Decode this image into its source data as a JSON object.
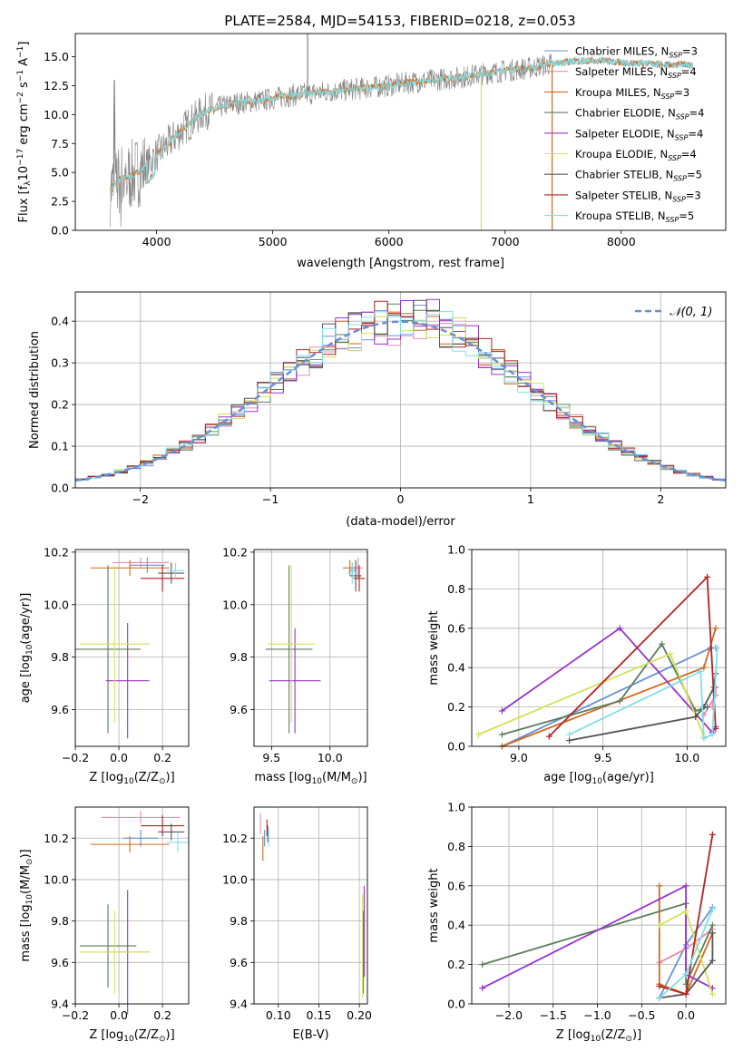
{
  "figure": {
    "title": "PLATE=2584, MJD=54153, FIBERID=0218, z=0.053"
  },
  "colors": {
    "observed": "#808080",
    "grid": "#b0b0b0",
    "series": [
      "#6a8fd8",
      "#e68ab0",
      "#d2691e",
      "#5a7d5a",
      "#9932cc",
      "#d4e157",
      "#555555",
      "#b22222",
      "#80deea"
    ]
  },
  "chart_data": [
    {
      "id": "spectrum",
      "type": "line",
      "title": "PLATE=2584, MJD=54153, FIBERID=0218, z=0.053",
      "xlabel": "wavelength [Angstrom, rest frame]",
      "ylabel_main": "Flux [f",
      "ylabel_sub": "λ",
      "ylabel_rest": "10",
      "ylabel_exp": "−17",
      "ylabel_units": " erg cm",
      "ylabel_exp2": "−2",
      "ylabel_s": " s",
      "ylabel_exp3": "−1",
      "ylabel_a": " A",
      "ylabel_exp4": "−1",
      "ylabel_end": "]",
      "xlim": [
        3300,
        8900
      ],
      "ylim": [
        0,
        17
      ],
      "xticks": [
        4000,
        5000,
        6000,
        7000,
        8000
      ],
      "yticks": [
        0.0,
        2.5,
        5.0,
        7.5,
        10.0,
        12.5,
        15.0
      ],
      "continuum": {
        "x": [
          3600,
          3700,
          3800,
          3900,
          4000,
          4100,
          4200,
          4300,
          4400,
          4500,
          4600,
          4700,
          4800,
          4900,
          5000,
          5200,
          5400,
          5600,
          5800,
          6000,
          6200,
          6400,
          6600,
          6800,
          7000,
          7200,
          7400,
          7600,
          7800,
          8000,
          8200,
          8400,
          8600
        ],
        "y": [
          3.5,
          4.5,
          4.8,
          5.5,
          6.5,
          7.5,
          8.5,
          9.4,
          10.2,
          10.5,
          10.8,
          11.0,
          11.1,
          11.2,
          11.4,
          11.7,
          11.9,
          12.1,
          12.3,
          12.5,
          12.8,
          13.0,
          13.2,
          13.5,
          13.8,
          14.0,
          14.4,
          14.6,
          14.7,
          14.5,
          14.4,
          14.3,
          14.3
        ]
      },
      "spikes": [
        {
          "x": 5300,
          "y": 17.0
        },
        {
          "x": 6795,
          "y": 0.0
        },
        {
          "x": 7405,
          "y": 0.0
        }
      ],
      "legend": [
        {
          "pre": "Chabrier MILES, N",
          "sub": "SSP",
          "post": "=3"
        },
        {
          "pre": "Salpeter MILES, N",
          "sub": "SSP",
          "post": "=4"
        },
        {
          "pre": "Kroupa MILES, N",
          "sub": "SSP",
          "post": "=3"
        },
        {
          "pre": "Chabrier ELODIE, N",
          "sub": "SSP",
          "post": "=4"
        },
        {
          "pre": "Salpeter ELODIE, N",
          "sub": "SSP",
          "post": "=4"
        },
        {
          "pre": "Kroupa ELODIE, N",
          "sub": "SSP",
          "post": "=4"
        },
        {
          "pre": "Chabrier STELIB, N",
          "sub": "SSP",
          "post": "=5"
        },
        {
          "pre": "Salpeter STELIB, N",
          "sub": "SSP",
          "post": "=3"
        },
        {
          "pre": "Kroupa STELIB, N",
          "sub": "SSP",
          "post": "=5"
        }
      ],
      "legend_position": "upper right",
      "grid": false
    },
    {
      "id": "residuals",
      "type": "line",
      "xlabel": "(data-model)/error",
      "ylabel": "Normed distribution",
      "xlim": [
        -2.5,
        2.5
      ],
      "ylim": [
        0,
        0.47
      ],
      "xticks": [
        -2,
        -1,
        0,
        1,
        2
      ],
      "xtick_labels": [
        "−2",
        "−1",
        "0",
        "1",
        "2"
      ],
      "yticks": [
        0.0,
        0.1,
        0.2,
        0.3,
        0.4
      ],
      "legend": "𝒩(0, 1)",
      "legend_position": "upper right",
      "grid": true,
      "bin_width": 0.1
    },
    {
      "id": "age_vs_Z",
      "type": "scatter",
      "xlabel": "Z [log",
      "xlabel_sub": "10",
      "xlabel_rest": "(Z/Z",
      "xlabel_sun": "⊙",
      "xlabel_end": ")]",
      "ylabel": "age  [log",
      "ylabel_sub": "10",
      "ylabel_rest": "(age/yr)]",
      "xlim": [
        -0.2,
        0.32
      ],
      "ylim": [
        9.46,
        10.21
      ],
      "xticks": [
        -0.2,
        0.0,
        0.2
      ],
      "xtick_labels": [
        "−0.2",
        "0.0",
        "0.2"
      ],
      "yticks": [
        9.6,
        9.8,
        10.0,
        10.2
      ],
      "grid": true,
      "points": [
        {
          "s": 0,
          "x": 0.13,
          "y": 10.15,
          "xerr": 0.08,
          "yerr": 0.03
        },
        {
          "s": 1,
          "x": 0.1,
          "y": 10.16,
          "xerr": 0.13,
          "yerr": 0.02
        },
        {
          "s": 2,
          "x": 0.05,
          "y": 10.14,
          "xerr": 0.18,
          "yerr": 0.03
        },
        {
          "s": 3,
          "x": -0.05,
          "y": 9.83,
          "xerr": 0.15,
          "yerr": 0.32
        },
        {
          "s": 4,
          "x": 0.04,
          "y": 9.71,
          "xerr": 0.1,
          "yerr": 0.22
        },
        {
          "s": 5,
          "x": -0.02,
          "y": 9.85,
          "xerr": 0.16,
          "yerr": 0.3
        },
        {
          "s": 6,
          "x": 0.24,
          "y": 10.12,
          "xerr": 0.06,
          "yerr": 0.04
        },
        {
          "s": 7,
          "x": 0.2,
          "y": 10.1,
          "xerr": 0.1,
          "yerr": 0.05
        },
        {
          "s": 8,
          "x": 0.26,
          "y": 10.13,
          "xerr": 0.04,
          "yerr": 0.03
        }
      ]
    },
    {
      "id": "age_vs_mass",
      "type": "scatter",
      "xlabel": "mass [log",
      "xlabel_sub": "10",
      "xlabel_rest": "(M/M",
      "xlabel_sun": "⊙",
      "xlabel_end": ")]",
      "xlim": [
        9.35,
        10.32
      ],
      "ylim": [
        9.46,
        10.21
      ],
      "xticks": [
        9.5,
        10.0
      ],
      "yticks": [
        9.6,
        9.8,
        10.0,
        10.2
      ],
      "grid": true,
      "points": [
        {
          "s": 0,
          "x": 10.19,
          "y": 10.13,
          "xerr": 0.03,
          "yerr": 0.03
        },
        {
          "s": 1,
          "x": 10.24,
          "y": 10.14,
          "xerr": 0.04,
          "yerr": 0.04
        },
        {
          "s": 2,
          "x": 10.17,
          "y": 10.14,
          "xerr": 0.06,
          "yerr": 0.03
        },
        {
          "s": 3,
          "x": 9.65,
          "y": 9.83,
          "xerr": 0.2,
          "yerr": 0.32
        },
        {
          "s": 4,
          "x": 9.7,
          "y": 9.71,
          "xerr": 0.22,
          "yerr": 0.2
        },
        {
          "s": 5,
          "x": 9.67,
          "y": 9.85,
          "xerr": 0.2,
          "yerr": 0.3
        },
        {
          "s": 6,
          "x": 10.22,
          "y": 10.11,
          "xerr": 0.05,
          "yerr": 0.06
        },
        {
          "s": 7,
          "x": 10.25,
          "y": 10.1,
          "xerr": 0.05,
          "yerr": 0.05
        },
        {
          "s": 8,
          "x": 10.19,
          "y": 10.12,
          "xerr": 0.04,
          "yerr": 0.04
        }
      ]
    },
    {
      "id": "weight_vs_age",
      "type": "line",
      "xlabel": "age  [log",
      "xlabel_sub": "10",
      "xlabel_rest": "(age/yr)]",
      "ylabel": "mass weight",
      "xlim": [
        8.72,
        10.23
      ],
      "ylim": [
        0,
        1.0
      ],
      "xticks": [
        9.0,
        9.5,
        10.0
      ],
      "yticks": [
        0.0,
        0.2,
        0.4,
        0.6,
        0.8,
        1.0
      ],
      "grid": true,
      "series": [
        {
          "s": 0,
          "x": [
            8.9,
            10.14,
            10.17
          ],
          "y": [
            0.0,
            0.5,
            0.5
          ]
        },
        {
          "s": 1,
          "x": [
            10.1,
            10.17,
            10.17,
            10.15
          ],
          "y": [
            0.16,
            0.26,
            0.3,
            0.2
          ]
        },
        {
          "s": 2,
          "x": [
            8.9,
            10.1,
            10.17
          ],
          "y": [
            0.0,
            0.4,
            0.6
          ]
        },
        {
          "s": 3,
          "x": [
            8.9,
            9.6,
            9.85,
            10.05,
            10.12
          ],
          "y": [
            0.06,
            0.23,
            0.52,
            0.18,
            0.2
          ]
        },
        {
          "s": 4,
          "x": [
            8.9,
            9.6,
            10.15,
            10.17
          ],
          "y": [
            0.18,
            0.6,
            0.07,
            0.1
          ]
        },
        {
          "s": 5,
          "x": [
            8.76,
            9.9,
            10.1
          ],
          "y": [
            0.06,
            0.47,
            0.05
          ]
        },
        {
          "s": 6,
          "x": [
            9.3,
            10.05,
            10.1,
            10.16,
            10.17
          ],
          "y": [
            0.03,
            0.15,
            0.2,
            0.3,
            0.37
          ]
        },
        {
          "s": 7,
          "x": [
            9.18,
            10.12,
            10.17
          ],
          "y": [
            0.05,
            0.86,
            0.09
          ]
        },
        {
          "s": 8,
          "x": [
            9.3,
            10.08,
            10.1,
            10.15,
            10.18
          ],
          "y": [
            0.06,
            0.38,
            0.04,
            0.06,
            0.5
          ]
        }
      ]
    },
    {
      "id": "mass_vs_Z",
      "type": "scatter",
      "xlabel": "Z [log",
      "xlabel_sub": "10",
      "xlabel_rest": "(Z/Z",
      "xlabel_sun": "⊙",
      "xlabel_end": ")]",
      "ylabel": "mass [log",
      "ylabel_sub": "10",
      "ylabel_rest": "(M/M",
      "ylabel_sun": "⊙",
      "ylabel_end": ")]",
      "xlim": [
        -0.2,
        0.32
      ],
      "ylim": [
        9.4,
        10.35
      ],
      "xticks": [
        -0.2,
        0.0,
        0.2
      ],
      "xtick_labels": [
        "−0.2",
        "0.0",
        "0.2"
      ],
      "yticks": [
        9.4,
        9.6,
        9.8,
        10.0,
        10.2
      ],
      "grid": true,
      "points": [
        {
          "s": 0,
          "x": 0.1,
          "y": 10.2,
          "xerr": 0.08,
          "yerr": 0.04
        },
        {
          "s": 1,
          "x": 0.1,
          "y": 10.3,
          "xerr": 0.18,
          "yerr": 0.03
        },
        {
          "s": 2,
          "x": 0.05,
          "y": 10.17,
          "xerr": 0.18,
          "yerr": 0.04
        },
        {
          "s": 3,
          "x": -0.05,
          "y": 9.68,
          "xerr": 0.13,
          "yerr": 0.2
        },
        {
          "s": 4,
          "x": 0.04,
          "y": 9.65,
          "xerr": 0.1,
          "yerr": 0.3
        },
        {
          "s": 5,
          "x": -0.02,
          "y": 9.65,
          "xerr": 0.16,
          "yerr": 0.2
        },
        {
          "s": 6,
          "x": 0.24,
          "y": 10.23,
          "xerr": 0.06,
          "yerr": 0.04
        },
        {
          "s": 7,
          "x": 0.2,
          "y": 10.26,
          "xerr": 0.1,
          "yerr": 0.05
        },
        {
          "s": 8,
          "x": 0.27,
          "y": 10.18,
          "xerr": 0.05,
          "yerr": 0.05
        }
      ]
    },
    {
      "id": "mass_vs_ebv",
      "type": "scatter",
      "xlabel": "E(B-V)",
      "xlim": [
        0.07,
        0.21
      ],
      "ylim": [
        9.4,
        10.35
      ],
      "xticks": [
        0.1,
        0.15,
        0.2
      ],
      "xtick_labels": [
        "0.10",
        "0.15",
        "0.20"
      ],
      "yticks": [
        9.4,
        9.6,
        9.8,
        10.0,
        10.2
      ],
      "grid": true,
      "points": [
        {
          "s": 0,
          "x": 0.083,
          "y": 10.2,
          "xerr": 0,
          "yerr": 0.04
        },
        {
          "s": 1,
          "x": 0.078,
          "y": 10.27,
          "xerr": 0,
          "yerr": 0.05
        },
        {
          "s": 2,
          "x": 0.081,
          "y": 10.15,
          "xerr": 0,
          "yerr": 0.06
        },
        {
          "s": 3,
          "x": 0.205,
          "y": 9.65,
          "xerr": 0,
          "yerr": 0.2
        },
        {
          "s": 4,
          "x": 0.206,
          "y": 9.75,
          "xerr": 0,
          "yerr": 0.22
        },
        {
          "s": 5,
          "x": 0.204,
          "y": 9.68,
          "xerr": 0,
          "yerr": 0.25
        },
        {
          "s": 6,
          "x": 0.087,
          "y": 10.22,
          "xerr": 0,
          "yerr": 0.04
        },
        {
          "s": 7,
          "x": 0.086,
          "y": 10.25,
          "xerr": 0,
          "yerr": 0.04
        },
        {
          "s": 8,
          "x": 0.088,
          "y": 10.2,
          "xerr": 0,
          "yerr": 0.04
        }
      ]
    },
    {
      "id": "weight_vs_Z",
      "type": "line",
      "xlabel": "Z [log",
      "xlabel_sub": "10",
      "xlabel_rest": "(Z/Z",
      "xlabel_sun": "⊙",
      "xlabel_end": ")]",
      "ylabel": "mass weight",
      "xlim": [
        -2.42,
        0.45
      ],
      "ylim": [
        0,
        1.0
      ],
      "xticks": [
        -2.0,
        -1.5,
        -1.0,
        -0.5,
        0.0
      ],
      "xtick_labels": [
        "−2.0",
        "−1.5",
        "−1.0",
        "−0.5",
        "0.0"
      ],
      "yticks": [
        0.0,
        0.2,
        0.4,
        0.6,
        0.8,
        1.0
      ],
      "grid": true,
      "series": [
        {
          "s": 0,
          "x": [
            -0.3,
            0.0,
            0.3
          ],
          "y": [
            0.03,
            0.3,
            0.49
          ]
        },
        {
          "s": 1,
          "x": [
            -0.3,
            0.0,
            0.3
          ],
          "y": [
            0.21,
            0.28,
            0.38
          ]
        },
        {
          "s": 2,
          "x": [
            -0.3,
            -0.3,
            0.0,
            0.3
          ],
          "y": [
            0.6,
            0.1,
            0.05,
            0.36
          ]
        },
        {
          "s": 3,
          "x": [
            -2.3,
            0.0,
            0.0,
            0.3
          ],
          "y": [
            0.2,
            0.51,
            0.1,
            0.4
          ]
        },
        {
          "s": 4,
          "x": [
            -2.3,
            0.0,
            0.0,
            0.3
          ],
          "y": [
            0.08,
            0.6,
            0.15,
            0.08
          ]
        },
        {
          "s": 5,
          "x": [
            -0.3,
            0.0,
            0.3
          ],
          "y": [
            0.4,
            0.47,
            0.05
          ]
        },
        {
          "s": 6,
          "x": [
            -0.3,
            0.0,
            0.3,
            0.3
          ],
          "y": [
            0.03,
            0.05,
            0.22,
            0.36
          ]
        },
        {
          "s": 7,
          "x": [
            -0.3,
            0.0,
            0.3
          ],
          "y": [
            0.09,
            0.05,
            0.86
          ]
        },
        {
          "s": 8,
          "x": [
            -0.3,
            0.0,
            0.3
          ],
          "y": [
            0.03,
            0.15,
            0.48
          ]
        }
      ]
    }
  ]
}
